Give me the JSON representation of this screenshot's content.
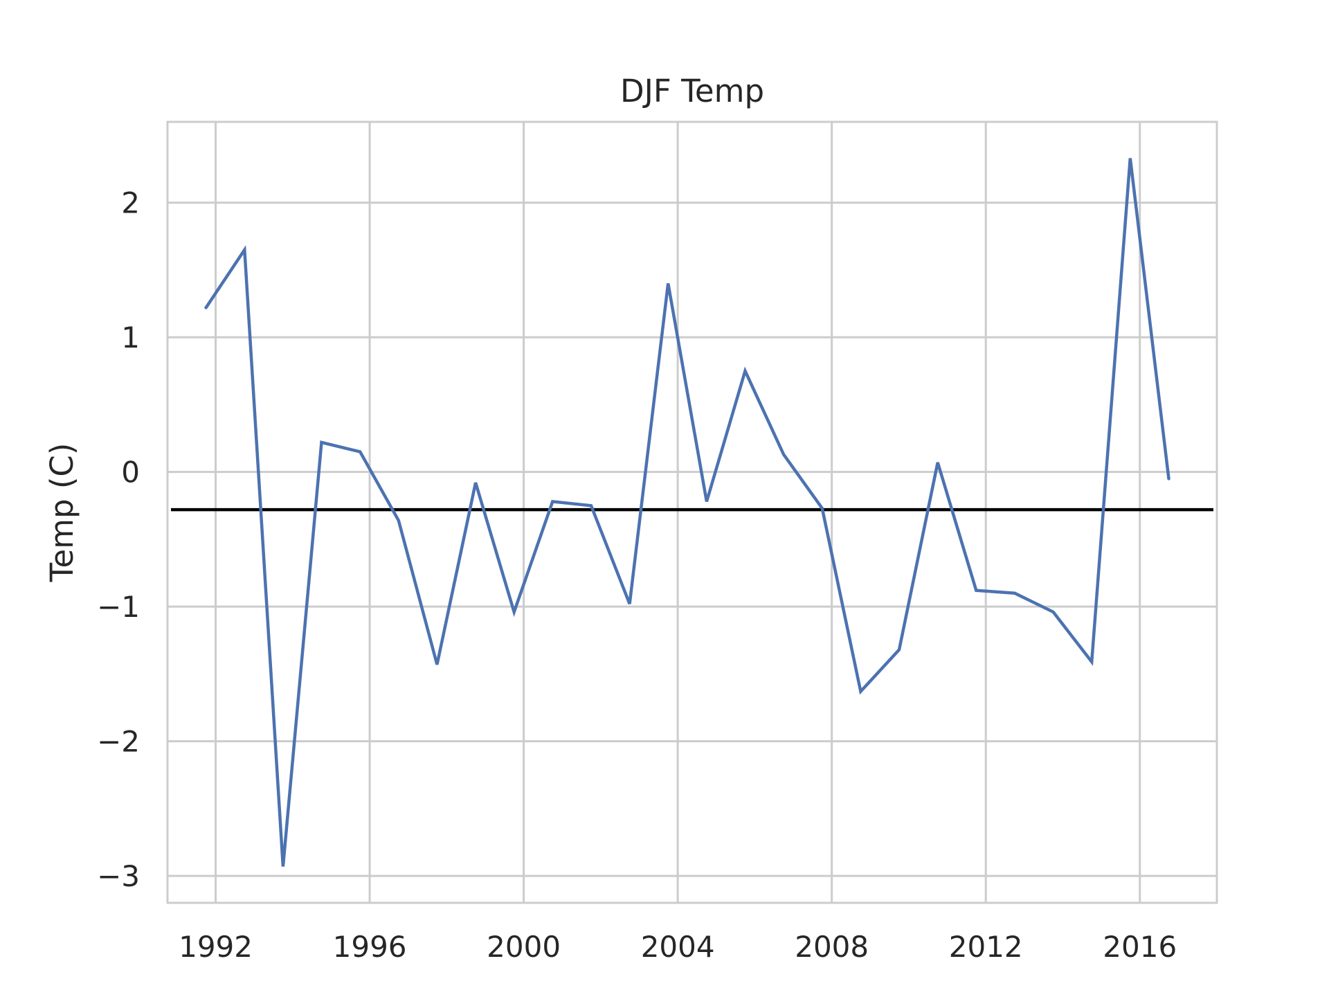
{
  "chart_data": {
    "type": "line",
    "title": "DJF Temp",
    "xlabel": "",
    "ylabel": "Temp (C)",
    "xlim": [
      1990.75,
      2018.0
    ],
    "ylim": [
      -3.2,
      2.6
    ],
    "x_ticks": [
      1992,
      1996,
      2000,
      2004,
      2008,
      2012,
      2016
    ],
    "y_ticks": [
      2,
      1,
      0,
      -1,
      -2,
      -3
    ],
    "y_tick_labels": [
      "2",
      "1",
      "0",
      "−1",
      "−2",
      "−3"
    ],
    "grid": true,
    "x": [
      1991.75,
      1992.75,
      1993.75,
      1994.75,
      1995.75,
      1996.75,
      1997.75,
      1998.75,
      1999.75,
      2000.75,
      2001.75,
      2002.75,
      2003.75,
      2004.75,
      2005.75,
      2006.75,
      2007.75,
      2008.75,
      2009.75,
      2010.75,
      2011.75,
      2012.75,
      2013.75,
      2014.75,
      2015.75,
      2016.75
    ],
    "series": [
      {
        "color": "#4c72b0",
        "values": [
          1.22,
          1.65,
          -2.93,
          0.22,
          0.15,
          -0.36,
          -1.43,
          -0.08,
          -1.04,
          -0.22,
          -0.25,
          -0.98,
          1.4,
          -0.22,
          0.75,
          0.13,
          -0.27,
          -1.63,
          -1.32,
          0.07,
          -0.88,
          -0.9,
          -1.04,
          -1.41,
          2.33,
          -0.05
        ]
      }
    ],
    "reference_line": {
      "y": -0.28,
      "color": "#000000"
    }
  }
}
